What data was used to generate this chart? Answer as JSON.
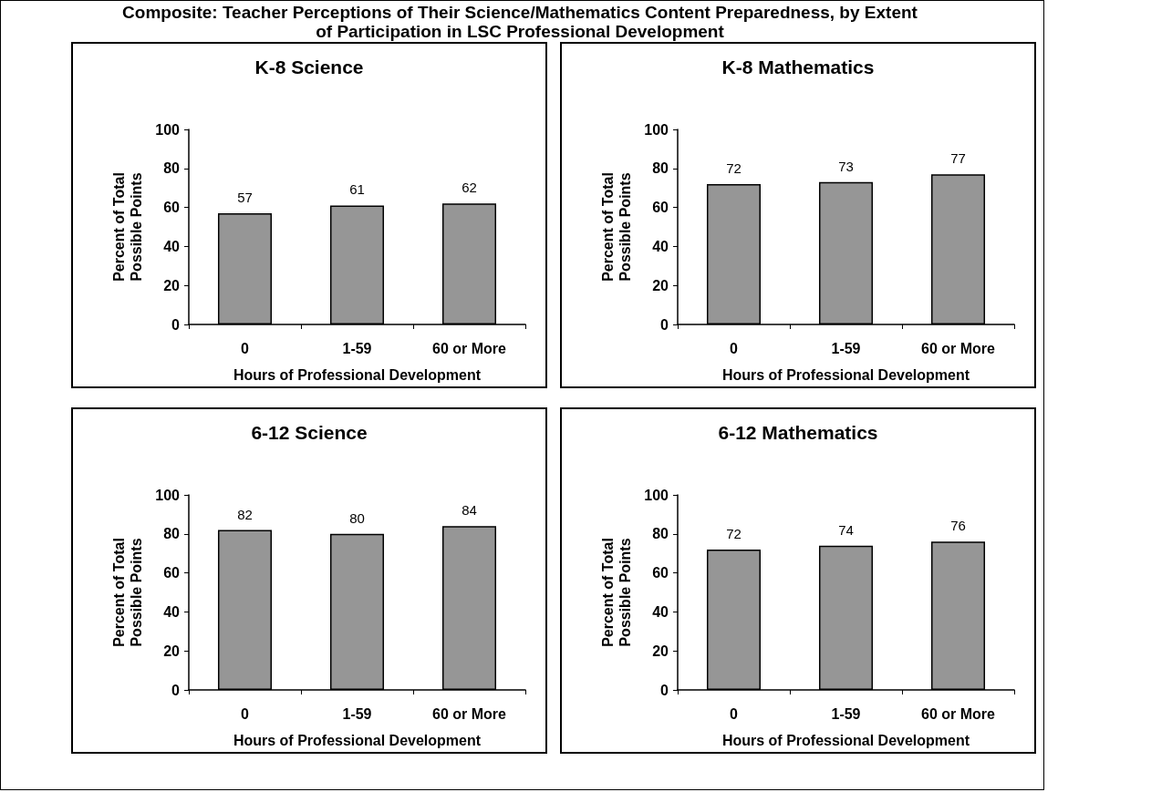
{
  "chart_data": [
    {
      "type": "bar",
      "title": "K-8 Science",
      "annotations": [
        "Composite: Teacher Perceptions of Their Science/Mathematics Content Preparedness, by Extent of Participation in LSC Professional Development"
      ],
      "xlabel": "Hours of Professional Development",
      "ylabel": "Percent of Total Possible Points",
      "categories": [
        "0",
        "1-59",
        "60 or More"
      ],
      "values": [
        57,
        61,
        62
      ],
      "color": "#969696",
      "ylim": [
        0,
        100
      ],
      "yticks": [
        0,
        20,
        40,
        60,
        80,
        100
      ],
      "grid": false,
      "data_labels": true
    },
    {
      "type": "bar",
      "title": "K-8 Mathematics",
      "xlabel": "Hours of Professional Development",
      "ylabel": "Percent of Total Possible Points",
      "categories": [
        "0",
        "1-59",
        "60 or More"
      ],
      "values": [
        72,
        73,
        77
      ],
      "color": "#969696",
      "ylim": [
        0,
        100
      ],
      "yticks": [
        0,
        20,
        40,
        60,
        80,
        100
      ],
      "grid": false,
      "data_labels": true
    },
    {
      "type": "bar",
      "title": "6-12 Science",
      "xlabel": "Hours of Professional Development",
      "ylabel": "Percent of Total Possible Points",
      "categories": [
        "0",
        "1-59",
        "60 or More"
      ],
      "values": [
        82,
        80,
        84
      ],
      "color": "#969696",
      "ylim": [
        0,
        100
      ],
      "yticks": [
        0,
        20,
        40,
        60,
        80,
        100
      ],
      "grid": false,
      "data_labels": true
    },
    {
      "type": "bar",
      "title": "6-12 Mathematics",
      "xlabel": "Hours of Professional Development",
      "ylabel": "Percent of Total Possible Points",
      "categories": [
        "0",
        "1-59",
        "60 or More"
      ],
      "values": [
        72,
        74,
        76
      ],
      "color": "#969696",
      "ylim": [
        0,
        100
      ],
      "yticks": [
        0,
        20,
        40,
        60,
        80,
        100
      ],
      "grid": false,
      "data_labels": true
    }
  ]
}
